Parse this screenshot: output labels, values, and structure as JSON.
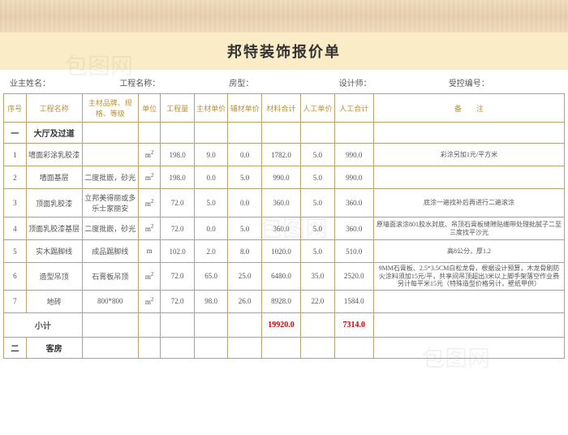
{
  "title": "邦特装饰报价单",
  "info_labels": {
    "owner": "业主姓名：",
    "project": "工程名称：",
    "house_type": "房型：",
    "designer": "设计师：",
    "control_no": "受控编号："
  },
  "info_values": {
    "owner": "",
    "project": "",
    "house_type": "",
    "designer": "",
    "control_no": ""
  },
  "headers": [
    "序号",
    "工程名称",
    "主材品牌、规格、等级",
    "单位",
    "工程量",
    "主材单价",
    "辅材单价",
    "材料合计",
    "人工单价",
    "人工合计",
    "备　　注"
  ],
  "col_widths_pct": [
    4,
    10,
    10,
    4,
    6,
    6,
    6,
    7,
    6,
    7,
    34
  ],
  "header_color": "#b8923a",
  "border_color": "#b8a070",
  "title_bg": "#fbecc8",
  "subtotal_value_color": "#c00",
  "sections": [
    {
      "idx": "一",
      "name": "大厅及过道",
      "rows": [
        {
          "no": "1",
          "name": "墙面彩涂乳胶漆",
          "brand": "",
          "unit": "m²",
          "qty": "198.0",
          "mat_price": "9.0",
          "aux_price": "0.0",
          "mat_total": "1782.0",
          "labor_price": "5.0",
          "labor_total": "990.0",
          "remark": "彩涂另加1元/平方米"
        },
        {
          "no": "2",
          "name": "墙面基层",
          "brand": "二度批嵌，砂光",
          "unit": "m²",
          "qty": "198.0",
          "mat_price": "0.0",
          "aux_price": "5.0",
          "mat_total": "990.0",
          "labor_price": "5.0",
          "labor_total": "990.0",
          "remark": ""
        },
        {
          "no": "3",
          "name": "顶面乳胶漆",
          "brand": "立邦美得丽或多乐士家丽安",
          "unit": "m²",
          "qty": "72.0",
          "mat_price": "5.0",
          "aux_price": "0.0",
          "mat_total": "360.0",
          "labor_price": "5.0",
          "labor_total": "360.0",
          "remark": "底涂一遍找补后再进行二遍滚涂"
        },
        {
          "no": "4",
          "name": "顶面乳胶漆基层",
          "brand": "二度批嵌，砂光",
          "unit": "m²",
          "qty": "72.0",
          "mat_price": "0.0",
          "aux_price": "5.0",
          "mat_total": "360.0",
          "labor_price": "5.0",
          "labor_total": "360.0",
          "remark": "原墙面滚涂801胶水封底、吊顶石膏板缝隙贴绷带处理批腻子二至三度找平沙光"
        },
        {
          "no": "5",
          "name": "实木踢脚线",
          "brand": "成品踢脚线",
          "unit": "m",
          "qty": "102.0",
          "mat_price": "2.0",
          "aux_price": "8.0",
          "mat_total": "1020.0",
          "labor_price": "5.0",
          "labor_total": "510.0",
          "remark": "高8公分，厚1.2"
        },
        {
          "no": "6",
          "name": "造型吊顶",
          "brand": "石膏板吊顶",
          "unit": "m²",
          "qty": "72.0",
          "mat_price": "65.0",
          "aux_price": "25.0",
          "mat_total": "6480.0",
          "labor_price": "35.0",
          "labor_total": "2520.0",
          "remark": "9MM石膏板、2.5*3.5CM白松龙骨，根据设计预算，木龙骨刷防火涂料须加15元/平，共享间吊顶超出3米以上脚手架落空作业费另计每平米15元（特殊造型价格另计，壁纸甲供）"
        },
        {
          "no": "7",
          "name": "地砖",
          "brand": "800*800",
          "unit": "m²",
          "qty": "72.0",
          "mat_price": "98.0",
          "aux_price": "26.0",
          "mat_total": "8928.0",
          "labor_price": "22.0",
          "labor_total": "1584.0",
          "remark": ""
        }
      ],
      "subtotal": {
        "label": "小计",
        "mat_total": "19920.0",
        "labor_total": "7314.0"
      }
    },
    {
      "idx": "二",
      "name": "客房",
      "rows": [],
      "subtotal": null
    }
  ],
  "watermark_text": "包图网"
}
